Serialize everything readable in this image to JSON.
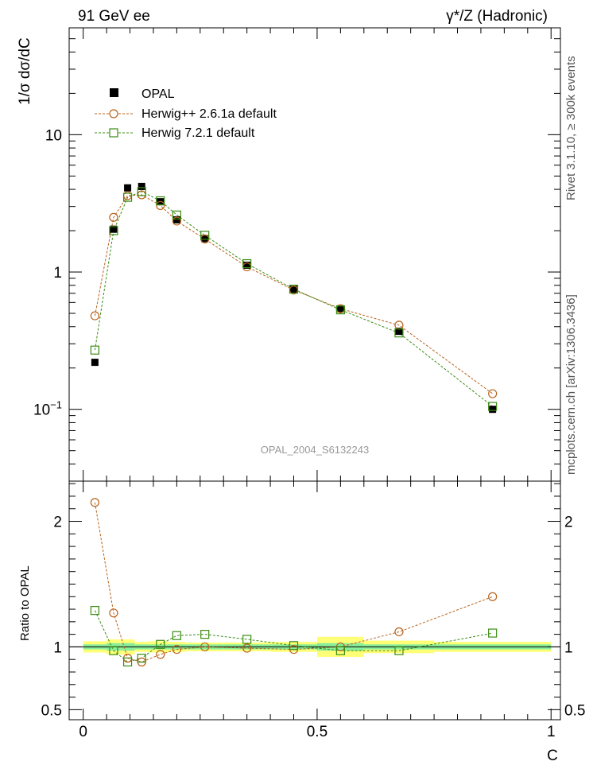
{
  "header": {
    "left": "91 GeV ee",
    "right": "γ*/Z (Hadronic)"
  },
  "side": {
    "rivet": "Rivet 3.1.10, ≥ 300k events",
    "mcplots": "mcplots.cern.ch [arXiv:1306.3436]"
  },
  "watermark": "OPAL_2004_S6132243",
  "colors": {
    "data": "#000000",
    "herwigpp": "#b8621b",
    "herwig7": "#3a8c12",
    "band_inner": "#88ee99",
    "band_outer": "#ffff77"
  },
  "chart_data": [
    {
      "type": "scatter",
      "panel": "main",
      "yscale": "log",
      "ylabel": "1/σ dσ/dC",
      "xlim": [
        -0.03,
        1.02
      ],
      "ylim": [
        0.03,
        60
      ],
      "y_ticks": [
        {
          "value": 0.1,
          "base": "10",
          "exp": "−1"
        },
        {
          "value": 1,
          "label": "1"
        },
        {
          "value": 10,
          "label": "10"
        }
      ],
      "legend_position": "top-left",
      "series": [
        {
          "name": "OPAL",
          "marker": "filled-square",
          "x": [
            0.025,
            0.065,
            0.095,
            0.125,
            0.165,
            0.2,
            0.26,
            0.35,
            0.45,
            0.55,
            0.675,
            0.875
          ],
          "values": [
            0.22,
            2.05,
            4.1,
            4.2,
            3.25,
            2.4,
            1.75,
            1.12,
            0.75,
            0.54,
            0.37,
            0.1
          ]
        },
        {
          "name": "Herwig++ 2.6.1a default",
          "marker": "open-circle",
          "x": [
            0.025,
            0.065,
            0.095,
            0.125,
            0.165,
            0.2,
            0.26,
            0.35,
            0.45,
            0.55,
            0.675,
            0.875
          ],
          "values": [
            0.48,
            2.5,
            3.6,
            3.65,
            3.05,
            2.35,
            1.74,
            1.09,
            0.74,
            0.54,
            0.41,
            0.13
          ]
        },
        {
          "name": "Herwig 7.2.1 default",
          "marker": "open-square",
          "x": [
            0.025,
            0.065,
            0.095,
            0.125,
            0.165,
            0.2,
            0.26,
            0.35,
            0.45,
            0.55,
            0.675,
            0.875
          ],
          "values": [
            0.27,
            2.0,
            3.5,
            3.85,
            3.3,
            2.6,
            1.85,
            1.15,
            0.75,
            0.53,
            0.36,
            0.105
          ]
        }
      ]
    },
    {
      "type": "scatter",
      "panel": "ratio",
      "ylabel": "Ratio to OPAL",
      "xlabel": "C",
      "xlim": [
        -0.03,
        1.02
      ],
      "ylim": [
        0.42,
        2.32
      ],
      "x_ticks": [
        "0",
        "0.5",
        "1"
      ],
      "y_ticks": [
        "0.5",
        "1",
        "2"
      ],
      "reference_band": {
        "edges": [
          0.0,
          0.05,
          0.08,
          0.11,
          0.14,
          0.18,
          0.22,
          0.3,
          0.4,
          0.5,
          0.6,
          0.75,
          1.0
        ],
        "inner": [
          0.02,
          0.03,
          0.03,
          0.02,
          0.02,
          0.02,
          0.02,
          0.02,
          0.02,
          0.03,
          0.02,
          0.02
        ],
        "outer": [
          0.045,
          0.06,
          0.06,
          0.04,
          0.045,
          0.04,
          0.035,
          0.035,
          0.04,
          0.08,
          0.05,
          0.04
        ]
      },
      "series": [
        {
          "name": "Herwig++ 2.6.1a default",
          "x": [
            0.025,
            0.065,
            0.095,
            0.125,
            0.165,
            0.2,
            0.26,
            0.35,
            0.45,
            0.55,
            0.675,
            0.875
          ],
          "values": [
            2.15,
            1.27,
            0.91,
            0.88,
            0.94,
            0.98,
            1.0,
            0.99,
            0.98,
            1.0,
            1.12,
            1.4
          ]
        },
        {
          "name": "Herwig 7.2.1 default",
          "x": [
            0.025,
            0.065,
            0.095,
            0.125,
            0.165,
            0.2,
            0.26,
            0.35,
            0.45,
            0.55,
            0.675,
            0.875
          ],
          "values": [
            1.29,
            0.97,
            0.88,
            0.91,
            1.02,
            1.09,
            1.1,
            1.06,
            1.01,
            0.97,
            0.97,
            1.11
          ]
        }
      ]
    }
  ]
}
